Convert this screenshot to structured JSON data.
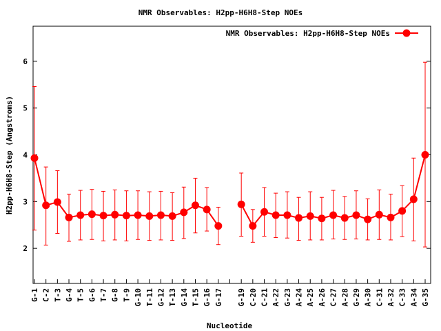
{
  "chart_data": {
    "type": "line",
    "title": "NMR Observables: H2pp-H6H8-Step NOEs",
    "xlabel": "Nucleotide",
    "ylabel": "H2pp-H6H8-Step (Angstroms)",
    "ylim": [
      1.25,
      6.75
    ],
    "yticks": [
      2,
      3,
      4,
      5,
      6
    ],
    "legend_position": "top-right",
    "grid": false,
    "color": "#ff0000",
    "categories": [
      "G-1",
      "C-2",
      "T-3",
      "G-4",
      "T-5",
      "G-6",
      "T-7",
      "G-8",
      "T-9",
      "G-10",
      "T-11",
      "G-12",
      "T-13",
      "G-14",
      "T-15",
      "G-16",
      "G-17",
      "",
      "G-19",
      "C-20",
      "C-21",
      "A-22",
      "G-23",
      "A-24",
      "A-25",
      "A-26",
      "C-27",
      "A-28",
      "G-29",
      "A-30",
      "C-31",
      "A-32",
      "C-33",
      "A-34",
      "G-35"
    ],
    "series": [
      {
        "name": "NMR Observables: H2pp-H6H8-Step NOEs",
        "values": [
          3.93,
          2.92,
          2.99,
          2.66,
          2.71,
          2.73,
          2.7,
          2.72,
          2.7,
          2.71,
          2.69,
          2.71,
          2.69,
          2.77,
          2.92,
          2.83,
          2.48,
          null,
          2.94,
          2.48,
          2.78,
          2.71,
          2.71,
          2.65,
          2.69,
          2.64,
          2.71,
          2.65,
          2.71,
          2.62,
          2.72,
          2.66,
          2.8,
          3.05,
          4.0
        ],
        "err_low": [
          2.39,
          2.07,
          2.32,
          2.15,
          2.18,
          2.19,
          2.16,
          2.18,
          2.16,
          2.19,
          2.17,
          2.18,
          2.17,
          2.21,
          2.33,
          2.37,
          2.08,
          null,
          2.26,
          2.13,
          2.26,
          2.23,
          2.22,
          2.17,
          2.18,
          2.18,
          2.2,
          2.19,
          2.2,
          2.18,
          2.19,
          2.18,
          2.25,
          2.16,
          2.03
        ],
        "err_high": [
          5.46,
          3.74,
          3.66,
          3.16,
          3.24,
          3.26,
          3.22,
          3.25,
          3.23,
          3.23,
          3.21,
          3.22,
          3.19,
          3.31,
          3.5,
          3.3,
          2.88,
          null,
          3.61,
          2.83,
          3.3,
          3.18,
          3.21,
          3.09,
          3.21,
          3.09,
          3.24,
          3.11,
          3.23,
          3.06,
          3.25,
          3.16,
          3.34,
          3.93,
          5.98
        ]
      }
    ]
  }
}
